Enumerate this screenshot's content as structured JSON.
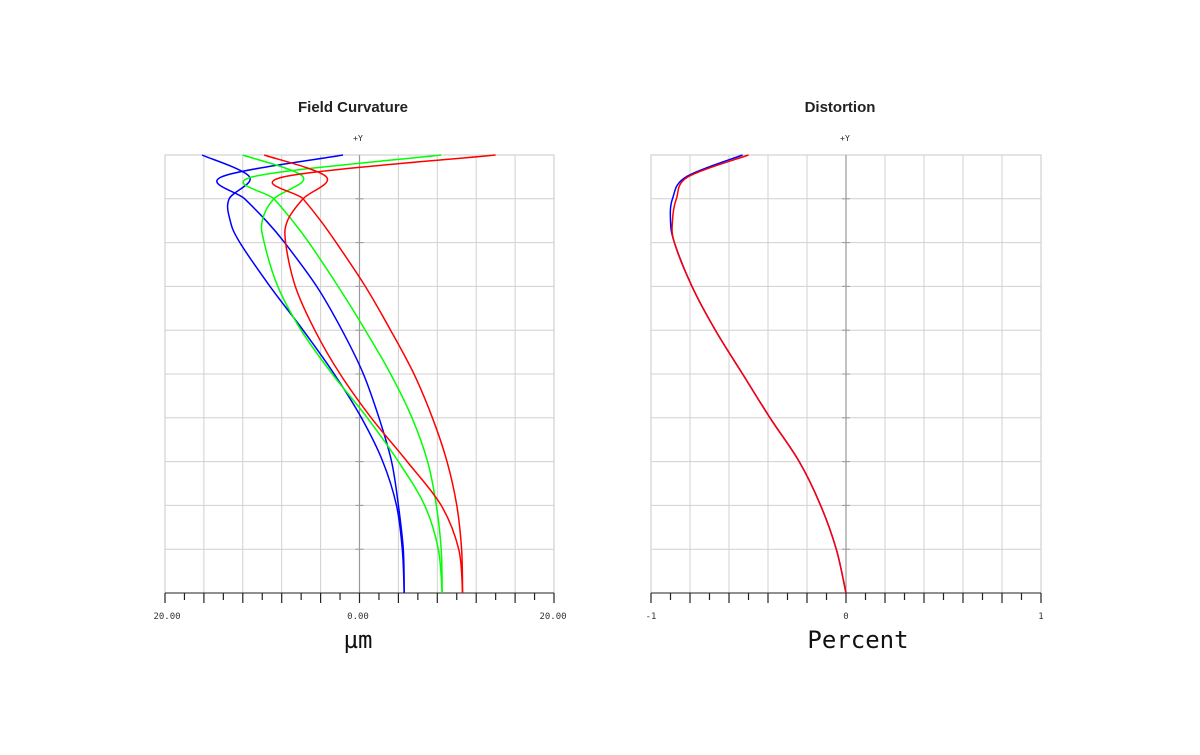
{
  "chart_data": [
    {
      "type": "line",
      "title": "Field Curvature",
      "y_axis_label": "+Y",
      "xlabel": "µm",
      "xlim": [
        -20,
        20
      ],
      "ylim": [
        0,
        1
      ],
      "x_tick_labels": {
        "left": "20.00",
        "center": "0.00",
        "right": "20.00"
      },
      "grid": true,
      "series": [
        {
          "color": "#0000ff",
          "y": [
            0,
            0.1,
            0.2,
            0.3,
            0.4,
            0.5,
            0.6,
            0.7,
            0.8,
            0.85,
            0.9,
            0.95,
            1.0
          ],
          "x": [
            4.6,
            4.4,
            3.8,
            2.4,
            0.2,
            -2.6,
            -5.8,
            -9.2,
            -12.3,
            -13.3,
            -13.4,
            -11.3,
            -16.2
          ]
        },
        {
          "color": "#0000ff",
          "y": [
            0,
            0.1,
            0.2,
            0.3,
            0.4,
            0.5,
            0.6,
            0.7,
            0.8,
            0.85,
            0.9,
            0.95,
            1.0
          ],
          "x": [
            4.6,
            4.5,
            4.0,
            3.3,
            2.0,
            0.4,
            -1.8,
            -4.4,
            -7.7,
            -9.6,
            -11.8,
            -14.2,
            -1.7
          ]
        },
        {
          "color": "#00ff00",
          "y": [
            0,
            0.1,
            0.2,
            0.3,
            0.4,
            0.5,
            0.6,
            0.7,
            0.8,
            0.85,
            0.9,
            0.95,
            1.0
          ],
          "x": [
            8.5,
            8.1,
            6.7,
            4.0,
            0.8,
            -2.8,
            -6.0,
            -8.4,
            -9.8,
            -10.0,
            -8.8,
            -5.8,
            -12.0
          ]
        },
        {
          "color": "#00ff00",
          "y": [
            0,
            0.1,
            0.2,
            0.3,
            0.4,
            0.5,
            0.6,
            0.7,
            0.8,
            0.85,
            0.9,
            0.95,
            1.0
          ],
          "x": [
            8.5,
            8.4,
            7.9,
            7.0,
            5.4,
            3.2,
            0.6,
            -2.2,
            -5.2,
            -6.9,
            -8.8,
            -11.0,
            8.4
          ]
        },
        {
          "color": "#ff0000",
          "y": [
            0,
            0.1,
            0.2,
            0.3,
            0.4,
            0.5,
            0.6,
            0.7,
            0.8,
            0.85,
            0.9,
            0.95,
            1.0
          ],
          "x": [
            10.6,
            10.2,
            8.4,
            4.9,
            1.2,
            -2.0,
            -4.6,
            -6.6,
            -7.6,
            -7.4,
            -5.8,
            -3.4,
            -9.8
          ]
        },
        {
          "color": "#ff0000",
          "y": [
            0,
            0.1,
            0.2,
            0.3,
            0.4,
            0.5,
            0.6,
            0.7,
            0.8,
            0.85,
            0.9,
            0.95,
            1.0
          ],
          "x": [
            10.6,
            10.5,
            10.0,
            9.0,
            7.5,
            5.6,
            3.2,
            0.6,
            -2.4,
            -4.0,
            -5.8,
            -7.8,
            14.0
          ]
        }
      ]
    },
    {
      "type": "line",
      "title": "Distortion",
      "y_axis_label": "+Y",
      "xlabel": "Percent",
      "xlim": [
        -1,
        1
      ],
      "ylim": [
        0,
        1
      ],
      "x_tick_labels": {
        "left": "-1",
        "center": "0",
        "right": "1"
      },
      "grid": true,
      "series": [
        {
          "color": "#0000ff",
          "y": [
            0,
            0.1,
            0.2,
            0.3,
            0.4,
            0.5,
            0.6,
            0.7,
            0.8,
            0.85,
            0.9,
            0.95,
            1.0
          ],
          "x": [
            0,
            -0.05,
            -0.13,
            -0.24,
            -0.39,
            -0.53,
            -0.67,
            -0.79,
            -0.88,
            -0.9,
            -0.89,
            -0.82,
            -0.53
          ]
        },
        {
          "color": "#ff0000",
          "y": [
            0,
            0.1,
            0.2,
            0.3,
            0.4,
            0.5,
            0.6,
            0.7,
            0.8,
            0.85,
            0.9,
            0.95,
            1.0
          ],
          "x": [
            0,
            -0.05,
            -0.13,
            -0.24,
            -0.39,
            -0.53,
            -0.67,
            -0.79,
            -0.88,
            -0.89,
            -0.87,
            -0.81,
            -0.5
          ]
        }
      ]
    }
  ]
}
